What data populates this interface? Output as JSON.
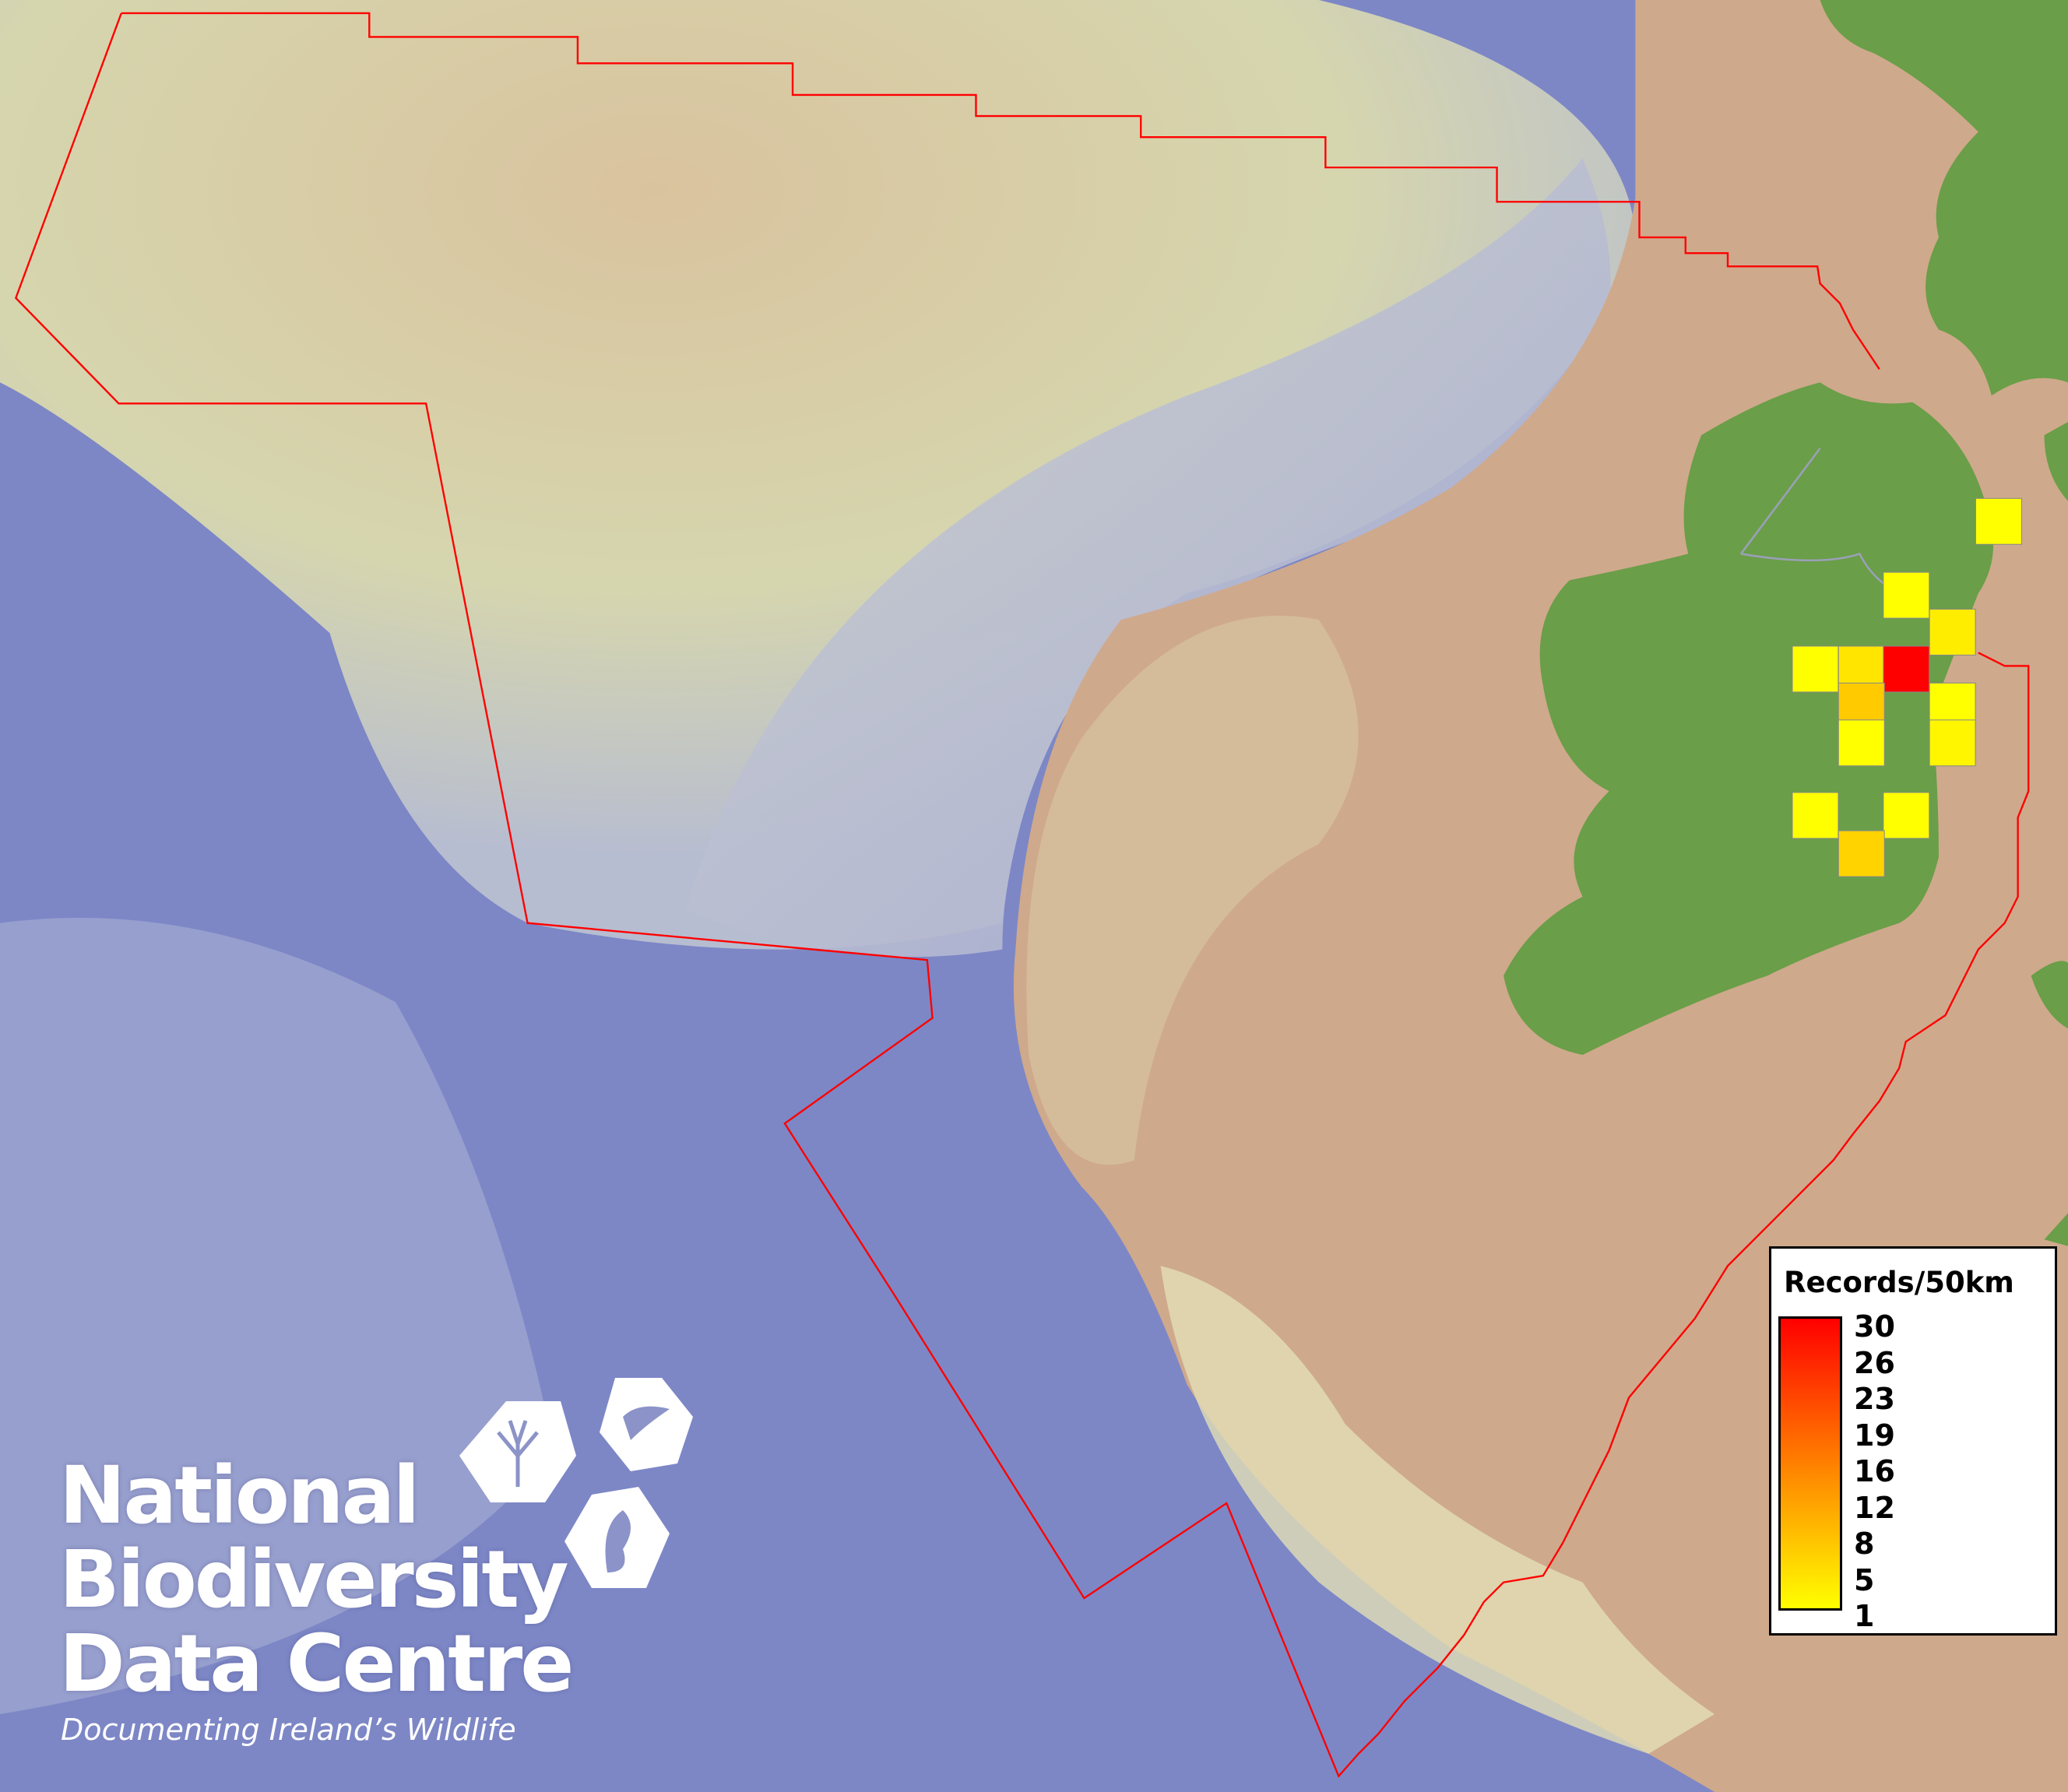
{
  "legend": {
    "title": "Records/50km",
    "ticks": [
      "30",
      "26",
      "23",
      "19",
      "16",
      "12",
      "8",
      "5",
      "1"
    ],
    "min": 1,
    "max": 30,
    "colors": {
      "low": "#ffff00",
      "mid": "#ff8000",
      "high": "#ff0000"
    }
  },
  "grid_values": [
    1,
    1,
    3,
    1,
    4,
    30,
    7,
    1,
    1,
    2,
    1,
    1,
    6
  ],
  "logo": {
    "line1": "National",
    "line2": "Biodiversity",
    "line3": "Data Centre",
    "tagline": "Documenting Ireland’s Wildlife"
  },
  "colors": {
    "boundary": "#ff0000",
    "land": "#6a9e48",
    "ocean": "#7d87c6",
    "shelf": "#cfa98c"
  }
}
